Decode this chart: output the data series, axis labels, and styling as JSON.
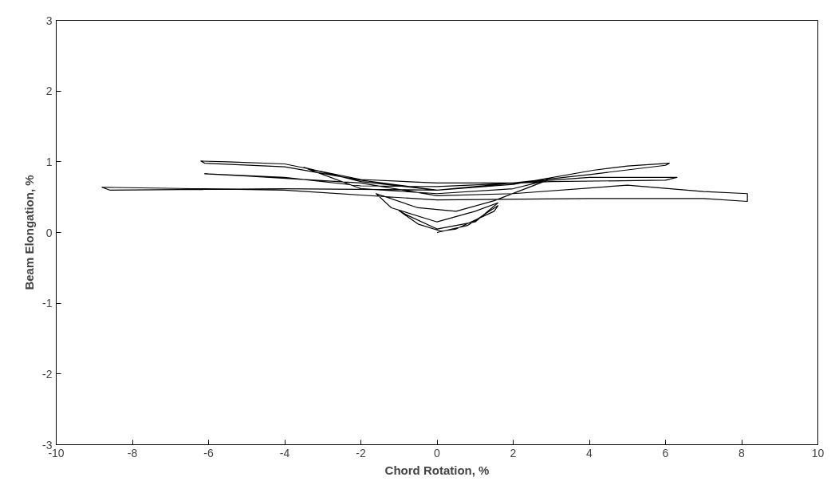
{
  "chart_data": {
    "type": "line",
    "xlabel": "Chord Rotation, %",
    "ylabel": "Beam Elongation, %",
    "xlim": [
      -10,
      10
    ],
    "ylim": [
      -3,
      3
    ],
    "xticks": [
      -10,
      -8,
      -6,
      -4,
      -2,
      0,
      2,
      4,
      6,
      8,
      10
    ],
    "yticks": [
      -3,
      -2,
      -1,
      0,
      1,
      2,
      3
    ],
    "grid": false,
    "series": [
      {
        "color": "#000000",
        "x": [
          0,
          0.8,
          1.6,
          1.5,
          0.5,
          0.1,
          -0.5,
          -1.0,
          -0.8,
          0,
          1,
          1.6,
          1.0,
          0,
          -1.2,
          -1.6,
          -0.5,
          0.5,
          1.5,
          2.9,
          2.0,
          0,
          -2,
          -3.5,
          -2,
          0,
          2,
          4.1,
          5.0,
          6.1,
          6.0,
          4,
          2,
          0,
          -2,
          -4,
          -5.5,
          -6.2,
          -6.1,
          -4,
          -2,
          0,
          2,
          4,
          6.3,
          6.0,
          3,
          0,
          -2,
          -4,
          -6.1,
          -5,
          -2,
          0,
          2,
          5,
          7,
          8.15,
          8.15,
          7,
          4,
          0,
          -4,
          -8.8,
          -8.6,
          -4,
          0
        ],
        "values": [
          0,
          0.1,
          0.38,
          0.3,
          0.05,
          0.02,
          0.12,
          0.31,
          0.25,
          0.05,
          0.15,
          0.42,
          0.3,
          0.15,
          0.35,
          0.55,
          0.35,
          0.3,
          0.45,
          0.74,
          0.62,
          0.55,
          0.62,
          0.92,
          0.72,
          0.6,
          0.68,
          0.88,
          0.94,
          0.98,
          0.95,
          0.82,
          0.7,
          0.7,
          0.75,
          0.97,
          1.0,
          1.01,
          0.98,
          0.93,
          0.74,
          0.6,
          0.7,
          0.78,
          0.78,
          0.74,
          0.72,
          0.65,
          0.66,
          0.78,
          0.83,
          0.8,
          0.7,
          0.52,
          0.55,
          0.67,
          0.58,
          0.55,
          0.44,
          0.48,
          0.48,
          0.46,
          0.6,
          0.64,
          0.6,
          0.62,
          0.6
        ]
      }
    ]
  }
}
